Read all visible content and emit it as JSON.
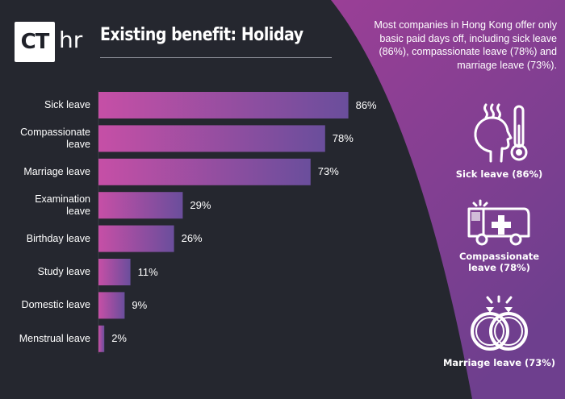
{
  "header": {
    "logo_text": "CT",
    "logo_suffix": "hr",
    "title": "Existing benefit: Holiday"
  },
  "intro_text": "Most companies in Hong Kong offer only basic paid days off, including sick leave (86%), compassionate leave (78%) and marriage leave (73%).",
  "highlights": [
    {
      "icon": "sick-head-thermometer-icon",
      "label": "Sick leave (86%)"
    },
    {
      "icon": "ambulance-icon",
      "label": "Compassionate\nleave (78%)"
    },
    {
      "icon": "wedding-rings-icon",
      "label": "Marriage leave (73%)"
    }
  ],
  "colors": {
    "background": "#25272f",
    "panel": "#8f3f96",
    "bar_start": "#c64fa6",
    "bar_end": "#6a4e9c",
    "text": "#ffffff"
  },
  "chart_data": {
    "type": "bar",
    "orientation": "horizontal",
    "categories": [
      "Sick leave",
      "Compassionate\nleave",
      "Marriage leave",
      "Examination\nleave",
      "Birthday leave",
      "Study leave",
      "Domestic leave",
      "Menstrual leave"
    ],
    "values": [
      86,
      78,
      73,
      29,
      26,
      11,
      9,
      2
    ],
    "value_labels": [
      "86%",
      "78%",
      "73%",
      "29%",
      "26%",
      "11%",
      "9%",
      "2%"
    ],
    "unit": "%",
    "xlim": [
      0,
      100
    ],
    "grid": false,
    "legend": "none"
  }
}
